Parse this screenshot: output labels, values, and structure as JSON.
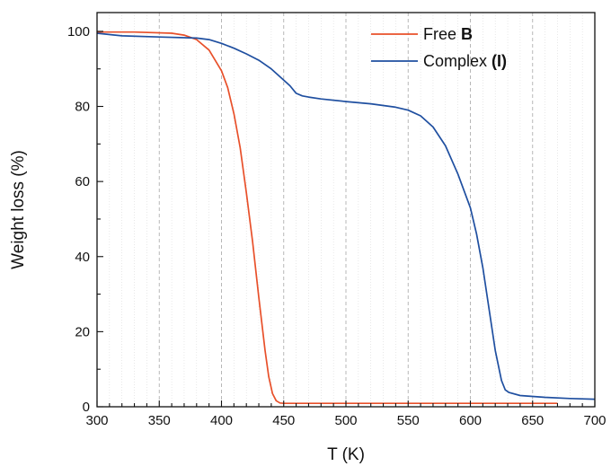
{
  "chart_data": {
    "type": "line",
    "xlabel": "T (K)",
    "ylabel": "Weight loss (%)",
    "xlim": [
      300,
      700
    ],
    "ylim": [
      0,
      105
    ],
    "xticks": [
      "300",
      "350",
      "400",
      "450",
      "500",
      "550",
      "600",
      "650",
      "700"
    ],
    "yticks": [
      "0",
      "20",
      "40",
      "60",
      "80",
      "100"
    ],
    "grid": "vertical dashed",
    "legend_position": "top-right",
    "colors": {
      "free_b": "#e8502a",
      "complex_i": "#1f4fa0",
      "axis": "#111111",
      "grid": "#b0b0b0"
    },
    "series": [
      {
        "name": "Free B",
        "legend_text": "Free ",
        "legend_bold": "B",
        "x": [
          300,
          330,
          360,
          370,
          380,
          390,
          400,
          405,
          410,
          415,
          420,
          425,
          430,
          435,
          438,
          441,
          444,
          447,
          450,
          470,
          500,
          550,
          600,
          650,
          670
        ],
        "y": [
          99.8,
          99.8,
          99.5,
          99.0,
          97.8,
          95.0,
          89.5,
          85.0,
          78.0,
          69.0,
          57.0,
          44.0,
          29.0,
          15.0,
          8.0,
          3.5,
          1.6,
          1.0,
          0.9,
          0.9,
          0.9,
          0.9,
          0.9,
          0.9,
          0.9
        ]
      },
      {
        "name": "Complex (I)",
        "legend_text": "Complex ",
        "legend_bold": "(I)",
        "x": [
          300,
          320,
          350,
          380,
          390,
          400,
          410,
          420,
          430,
          440,
          450,
          455,
          460,
          465,
          470,
          480,
          500,
          520,
          540,
          550,
          560,
          570,
          580,
          590,
          600,
          605,
          610,
          615,
          620,
          625,
          628,
          631,
          640,
          660,
          680,
          700
        ],
        "y": [
          99.5,
          98.8,
          98.5,
          98.2,
          97.8,
          96.8,
          95.5,
          94.0,
          92.3,
          90.0,
          87.0,
          85.5,
          83.5,
          82.8,
          82.5,
          82.0,
          81.3,
          80.7,
          79.8,
          79.0,
          77.5,
          74.5,
          69.5,
          62.0,
          53.0,
          46.0,
          37.0,
          26.0,
          15.0,
          7.0,
          4.5,
          3.8,
          3.0,
          2.5,
          2.2,
          2.0
        ]
      }
    ]
  }
}
